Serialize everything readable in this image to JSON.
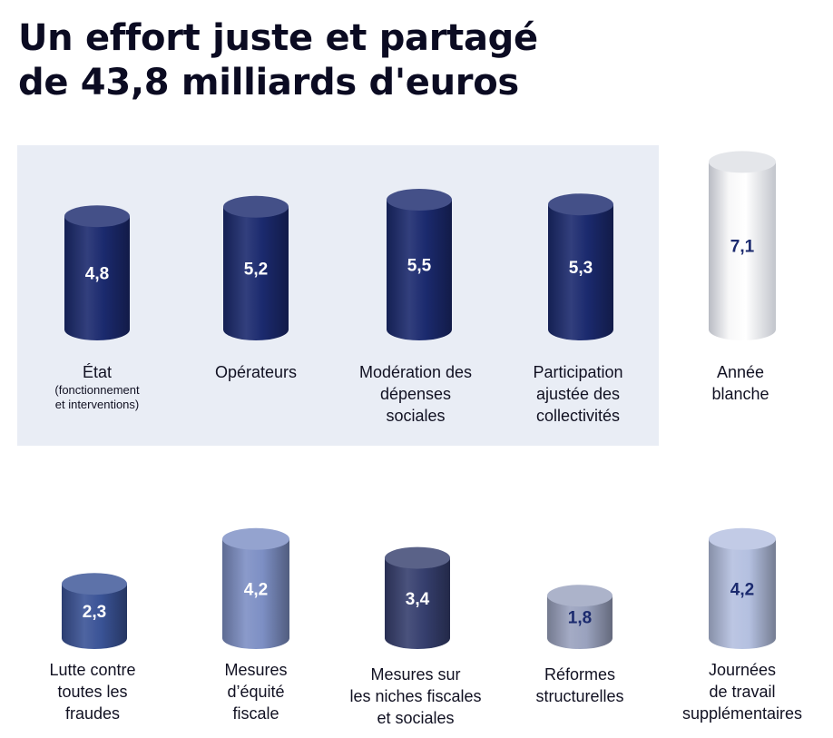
{
  "title_line1": "Un effort juste et partagé",
  "title_line2": "de 43,8 milliards d'euros",
  "chart_data": {
    "type": "bar",
    "title": "Un effort juste et partagé de 43,8 milliards d'euros",
    "series": [
      {
        "categories": [
          "État",
          "Opérateurs",
          "Modération des dépenses sociales",
          "Participation ajustée des collectivités",
          "Année blanche"
        ],
        "values": [
          4.8,
          5.2,
          5.5,
          5.3,
          7.1
        ],
        "value_labels": [
          "4,8",
          "5,2",
          "5,5",
          "5,3",
          "7,1"
        ],
        "colors": [
          "#1b2a6e",
          "#1b2a6e",
          "#1b2a6e",
          "#1b2a6e",
          "#f2f2f2"
        ],
        "label_colors": [
          "#ffffff",
          "#ffffff",
          "#ffffff",
          "#ffffff",
          "#1b2a6e"
        ],
        "highlighted_group": [
          0,
          1,
          2,
          3
        ]
      },
      {
        "categories": [
          "Lutte contre toutes les fraudes",
          "Mesures d’équité fiscale",
          "Mesures sur les niches fiscales et sociales",
          "Réformes structurelles",
          "Journées de travail supplémentaires"
        ],
        "values": [
          2.3,
          4.2,
          3.4,
          1.8,
          4.2
        ],
        "value_labels": [
          "2,3",
          "4,2",
          "3,4",
          "1,8",
          "4,2"
        ],
        "colors": [
          "#3a5396",
          "#7d8fc4",
          "#363f6e",
          "#9aa2be",
          "#b4c0e0"
        ],
        "label_colors": [
          "#ffffff",
          "#ffffff",
          "#ffffff",
          "#1b2a6e",
          "#1b2a6e"
        ]
      }
    ]
  },
  "labels_top": [
    {
      "main": "État",
      "sub1": "(fonctionnement",
      "sub2": "et interventions)"
    },
    {
      "l1": "Opérateurs"
    },
    {
      "l1": "Modération des",
      "l2": "dépenses",
      "l3": "sociales"
    },
    {
      "l1": "Participation",
      "l2": "ajustée des",
      "l3": "collectivités"
    },
    {
      "l1": "Année",
      "l2": "blanche"
    }
  ],
  "labels_bottom": [
    {
      "l1": "Lutte contre",
      "l2": "toutes les",
      "l3": "fraudes"
    },
    {
      "l1": "Mesures",
      "l2": "d’équité",
      "l3": "fiscale"
    },
    {
      "l1": "Mesures sur",
      "l2": "les niches fiscales",
      "l3": "et sociales"
    },
    {
      "l1": "Réformes",
      "l2": "structurelles"
    },
    {
      "l1": "Journées",
      "l2": "de travail",
      "l3": "supplémentaires"
    }
  ]
}
